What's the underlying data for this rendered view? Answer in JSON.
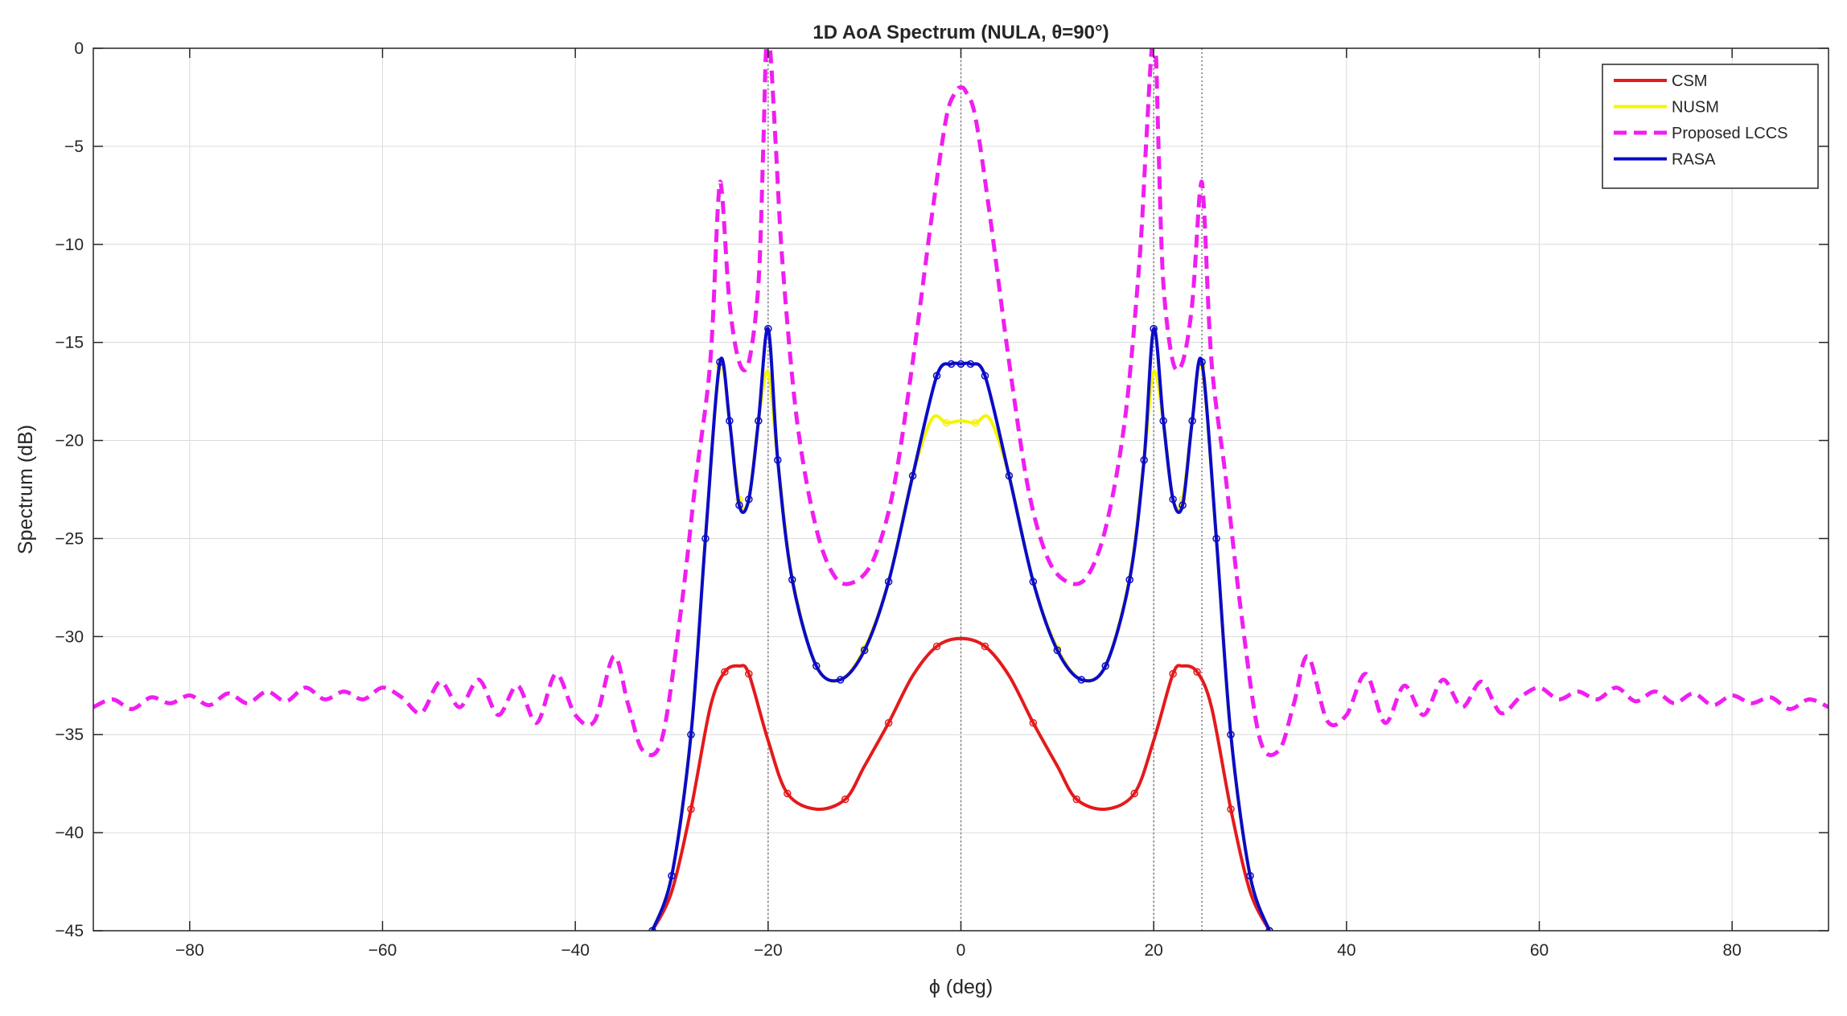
{
  "chart_data": {
    "type": "line",
    "title": "1D AoA Spectrum (NULA, θ=90°)",
    "xlabel": "ϕ (deg)",
    "ylabel": "Spectrum (dB)",
    "xlim": [
      -90,
      90
    ],
    "ylim": [
      -45,
      0
    ],
    "xticks": [
      -80,
      -60,
      -40,
      -20,
      0,
      20,
      40,
      60,
      80
    ],
    "yticks": [
      0,
      -5,
      -10,
      -15,
      -20,
      -25,
      -30,
      -35,
      -40,
      -45
    ],
    "xtick_labels": [
      "−80",
      "−60",
      "−40",
      "−20",
      "0",
      "20",
      "40",
      "60",
      "80"
    ],
    "ytick_labels": [
      "0",
      "−5",
      "−10",
      "−15",
      "−20",
      "−25",
      "−30",
      "−35",
      "−40",
      "−45"
    ],
    "grid": true,
    "legend_position": "top-right",
    "vertical_reference_lines": [
      -20,
      0,
      20,
      25
    ],
    "series": [
      {
        "name": "CSM",
        "color": "#e41a1c",
        "style": "solid",
        "markers": true,
        "x": [
          -32,
          -30,
          -28,
          -26,
          -24.5,
          -23,
          -22,
          -20,
          -18,
          -15,
          -12,
          -10,
          -7.5,
          -5,
          -2.5,
          0,
          2.5,
          5,
          7.5,
          10,
          12,
          15,
          18,
          20,
          22,
          23,
          24.5,
          26,
          28,
          30,
          32
        ],
        "y": [
          -45,
          -43,
          -38.8,
          -33.6,
          -31.8,
          -31.5,
          -31.9,
          -35.3,
          -38,
          -38.8,
          -38.3,
          -36.6,
          -34.4,
          -32,
          -30.5,
          -30.1,
          -30.5,
          -32,
          -34.4,
          -36.6,
          -38.3,
          -38.8,
          -38,
          -35.3,
          -31.9,
          -31.5,
          -31.8,
          -33.6,
          -38.8,
          -43,
          -45
        ]
      },
      {
        "name": "NUSM",
        "color": "#f5f500",
        "style": "solid",
        "markers": true,
        "x": [
          -32,
          -30,
          -28,
          -26.5,
          -25,
          -24,
          -23,
          -22,
          -21,
          -20,
          -19,
          -17.5,
          -15,
          -12.5,
          -10,
          -7.5,
          -5,
          -3,
          -1.5,
          0,
          1.5,
          3,
          5,
          7.5,
          10,
          12.5,
          15,
          17.5,
          19,
          20,
          21,
          22,
          23,
          24,
          25,
          26.5,
          28,
          30,
          32
        ],
        "y": [
          -45,
          -42.2,
          -35,
          -25,
          -16.2,
          -19,
          -23,
          -23,
          -19,
          -16.5,
          -21,
          -27,
          -31.5,
          -32.2,
          -30.6,
          -27.2,
          -21.8,
          -18.9,
          -19.1,
          -19,
          -19.1,
          -18.9,
          -21.8,
          -27.2,
          -30.6,
          -32.2,
          -31.5,
          -27,
          -21,
          -16.5,
          -19,
          -23,
          -23,
          -19,
          -16.2,
          -25,
          -35,
          -42.2,
          -45
        ]
      },
      {
        "name": "Proposed LCCS",
        "color": "#f01ef0",
        "style": "dashed",
        "markers": false,
        "x": [
          -90,
          -88,
          -86,
          -84,
          -82,
          -80,
          -78,
          -76,
          -74,
          -72,
          -70,
          -68,
          -66,
          -64,
          -62,
          -60,
          -58,
          -56,
          -54,
          -52,
          -50,
          -48,
          -46,
          -44,
          -42,
          -40,
          -38,
          -36,
          -34.5,
          -33,
          -31,
          -29,
          -27.5,
          -26,
          -25.2,
          -24.8,
          -24,
          -23,
          -22,
          -21,
          -20.5,
          -20.2,
          -19.8,
          -19.2,
          -18.5,
          -17,
          -15,
          -13,
          -11,
          -9,
          -7,
          -5,
          -3,
          -1.5,
          -0.5,
          0,
          0.5,
          1.5,
          3,
          5,
          7,
          9,
          11,
          13,
          15,
          17,
          18.5,
          19.2,
          19.8,
          20.2,
          20.5,
          21,
          22,
          23,
          24,
          24.8,
          25.2,
          26,
          27.5,
          29,
          31,
          33,
          34.5,
          36,
          38,
          40,
          42,
          44,
          46,
          48,
          50,
          52,
          54,
          56,
          58,
          60,
          62,
          64,
          66,
          68,
          70,
          72,
          74,
          76,
          78,
          80,
          82,
          84,
          86,
          88,
          90
        ],
        "y": [
          -33.6,
          -33.2,
          -33.7,
          -33.1,
          -33.4,
          -33.0,
          -33.5,
          -32.9,
          -33.4,
          -32.8,
          -33.3,
          -32.6,
          -33.2,
          -32.8,
          -33.2,
          -32.6,
          -33.1,
          -33.9,
          -32.3,
          -33.6,
          -32.2,
          -34.0,
          -32.5,
          -34.4,
          -31.9,
          -34.0,
          -34.3,
          -31.0,
          -33.5,
          -35.8,
          -35.2,
          -28.5,
          -22,
          -16,
          -8,
          -7.3,
          -13,
          -16,
          -16,
          -12,
          -5,
          0,
          0,
          -5,
          -11,
          -19,
          -24.5,
          -27,
          -27.2,
          -26,
          -22.5,
          -16,
          -8.5,
          -3.5,
          -2.2,
          -2,
          -2.2,
          -3.5,
          -8.5,
          -16,
          -22.5,
          -26,
          -27.2,
          -27,
          -24.5,
          -19,
          -11,
          -5,
          0,
          0,
          -5,
          -12,
          -16,
          -16,
          -13,
          -7.3,
          -8,
          -16,
          -22,
          -28.5,
          -35.2,
          -35.8,
          -33.5,
          -31.0,
          -34.3,
          -34.0,
          -31.9,
          -34.4,
          -32.5,
          -34.0,
          -32.2,
          -33.6,
          -32.3,
          -33.9,
          -33.1,
          -32.6,
          -33.2,
          -32.8,
          -33.2,
          -32.6,
          -33.3,
          -32.8,
          -33.4,
          -32.9,
          -33.5,
          -33.0,
          -33.4,
          -33.1,
          -33.7,
          -33.2,
          -33.6
        ]
      },
      {
        "name": "RASA",
        "color": "#0b0bc8",
        "style": "solid",
        "markers": true,
        "x": [
          -32,
          -30,
          -28,
          -26.5,
          -25,
          -24,
          -23,
          -22,
          -21,
          -20,
          -19,
          -17.5,
          -15,
          -12.5,
          -10,
          -7.5,
          -5,
          -2.5,
          -1,
          0,
          1,
          2.5,
          5,
          7.5,
          10,
          12.5,
          15,
          17.5,
          19,
          20,
          21,
          22,
          23,
          24,
          25,
          26.5,
          28,
          30,
          32
        ],
        "y": [
          -45,
          -42.2,
          -35,
          -25,
          -16,
          -19,
          -23.3,
          -23,
          -19,
          -14.3,
          -21,
          -27.1,
          -31.5,
          -32.2,
          -30.7,
          -27.2,
          -21.8,
          -16.7,
          -16.1,
          -16.1,
          -16.1,
          -16.7,
          -21.8,
          -27.2,
          -30.7,
          -32.2,
          -31.5,
          -27.1,
          -21,
          -14.3,
          -19,
          -23,
          -23.3,
          -19,
          -16,
          -25,
          -35,
          -42.2,
          -45
        ]
      }
    ]
  }
}
